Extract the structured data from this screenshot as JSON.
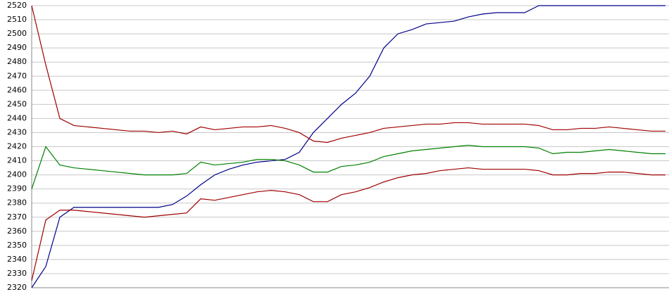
{
  "chart_data": {
    "type": "line",
    "categories": [
      null,
      null,
      null,
      null,
      null,
      null,
      null,
      null,
      null,
      null,
      null,
      null,
      null,
      null,
      null,
      null,
      null,
      null,
      null,
      null,
      null,
      null,
      null,
      null,
      null,
      null,
      null,
      null,
      null,
      null,
      null,
      null,
      null,
      null,
      null,
      null,
      null,
      null,
      null,
      null,
      null,
      null,
      null,
      null,
      null,
      null
    ],
    "series": [
      {
        "color": "#00008b",
        "values": [
          2320,
          2335,
          2370,
          2377,
          2377,
          2377,
          2377,
          2377,
          2377,
          2377,
          2379,
          2385,
          2393,
          2400,
          2404,
          2407,
          2409,
          2410,
          2411,
          2416,
          2430,
          2440,
          2450,
          2458,
          2470,
          2490,
          2500,
          2503,
          2507,
          2508,
          2509,
          2512,
          2514,
          2515,
          2515,
          2515,
          2520,
          2520,
          2520,
          2520,
          2520,
          2520,
          2520,
          2520,
          2520,
          2520
        ]
      },
      {
        "color": "#a00000",
        "values": [
          2520,
          2478,
          2440,
          2435,
          2434,
          2433,
          2432,
          2431,
          2431,
          2430,
          2431,
          2429,
          2434,
          2432,
          2433,
          2434,
          2434,
          2435,
          2433,
          2430,
          2424,
          2423,
          2426,
          2428,
          2430,
          2433,
          2434,
          2435,
          2436,
          2436,
          2437,
          2437,
          2436,
          2436,
          2436,
          2436,
          2435,
          2432,
          2432,
          2433,
          2433,
          2434,
          2433,
          2432,
          2431,
          2431
        ]
      },
      {
        "color": "#008000",
        "values": [
          2390,
          2420,
          2407,
          2405,
          2404,
          2403,
          2402,
          2401,
          2400,
          2400,
          2400,
          2401,
          2409,
          2407,
          2408,
          2409,
          2411,
          2411,
          2410,
          2407,
          2402,
          2402,
          2406,
          2407,
          2409,
          2413,
          2415,
          2417,
          2418,
          2419,
          2420,
          2421,
          2420,
          2420,
          2420,
          2420,
          2419,
          2415,
          2416,
          2416,
          2417,
          2418,
          2417,
          2416,
          2415,
          2415
        ]
      },
      {
        "color": "#a00000",
        "values": [
          2325,
          2368,
          2375,
          2375,
          2374,
          2373,
          2372,
          2371,
          2370,
          2371,
          2372,
          2373,
          2383,
          2382,
          2384,
          2386,
          2388,
          2389,
          2388,
          2386,
          2381,
          2381,
          2386,
          2388,
          2391,
          2395,
          2398,
          2400,
          2401,
          2403,
          2404,
          2405,
          2404,
          2404,
          2404,
          2404,
          2403,
          2400,
          2400,
          2401,
          2401,
          2402,
          2402,
          2401,
          2400,
          2400
        ]
      }
    ],
    "ylim": [
      2320,
      2520
    ],
    "yticks": [
      2320,
      2330,
      2340,
      2350,
      2360,
      2370,
      2380,
      2390,
      2400,
      2410,
      2420,
      2430,
      2440,
      2450,
      2460,
      2470,
      2480,
      2490,
      2500,
      2510,
      2520
    ],
    "grid": true
  }
}
